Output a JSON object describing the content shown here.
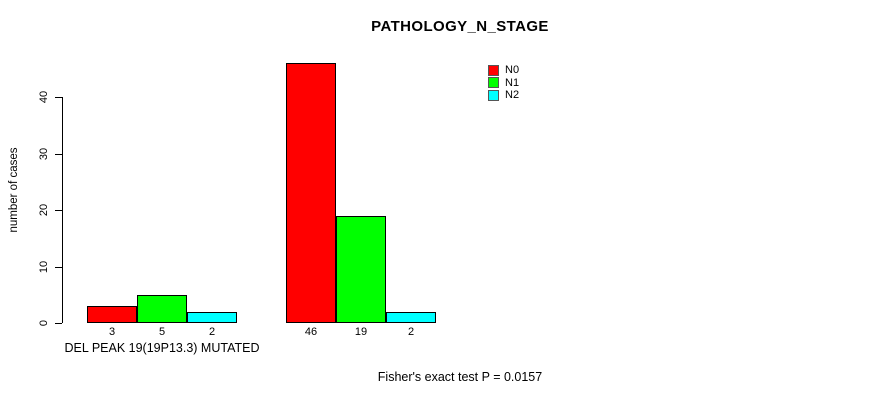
{
  "chart_data": {
    "type": "bar",
    "title": "PATHOLOGY_N_STAGE",
    "xlabel": "DEL PEAK 19(19P13.3) MUTATED",
    "ylabel": "number of cases",
    "ylim": [
      0,
      46
    ],
    "yticks": [
      0,
      10,
      20,
      30,
      40
    ],
    "grid": false,
    "legend_position": "top-right",
    "categories": [
      "DEL PEAK 19(19P13.3) MUTATED",
      ""
    ],
    "series": [
      {
        "name": "N0",
        "color": "#ff0000",
        "values": [
          3,
          46
        ]
      },
      {
        "name": "N1",
        "color": "#00ff00",
        "values": [
          5,
          19
        ]
      },
      {
        "name": "N2",
        "color": "#00ffff",
        "values": [
          2,
          2
        ]
      }
    ],
    "bar_labels": [
      [
        "3",
        "5",
        "2"
      ],
      [
        "46",
        "19",
        "2"
      ]
    ],
    "annotation": "Fisher's exact test P = 0.0157"
  }
}
